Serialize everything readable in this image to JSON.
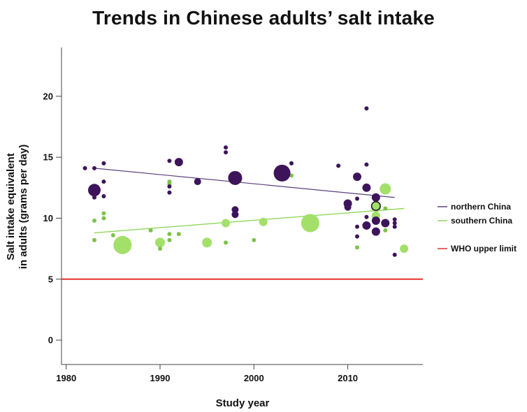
{
  "chart_data": {
    "type": "scatter",
    "title": "Trends in Chinese adults’ salt intake",
    "xlabel": "Study year",
    "ylabel_lines": [
      "Salt intake equivalent",
      "in adults (grams per day)"
    ],
    "xlim": [
      1979.5,
      2018
    ],
    "ylim": [
      -2,
      24
    ],
    "xticks": [
      "1980",
      "1990",
      "2000",
      "2010"
    ],
    "yticks": [
      "0",
      "5",
      "10",
      "15",
      "20"
    ],
    "legend_position": "right",
    "colors": {
      "northern": "#3d1459",
      "southern": "#a3e06a",
      "southern_dark": "#7cc24a",
      "who": "#e8302a",
      "axis": "#444444"
    },
    "series": [
      {
        "name": "northern China",
        "trend": [
          [
            1983,
            14.1
          ],
          [
            2015,
            11.7
          ]
        ],
        "points": [
          [
            1982,
            14.1,
            3
          ],
          [
            1983,
            14.1,
            3
          ],
          [
            1983,
            12.3,
            9
          ],
          [
            1983,
            11.7,
            3
          ],
          [
            1984,
            14.5,
            3
          ],
          [
            1984,
            13.0,
            3
          ],
          [
            1984,
            11.8,
            3
          ],
          [
            1991,
            14.7,
            3
          ],
          [
            1991,
            12.6,
            3
          ],
          [
            1991,
            12.1,
            3
          ],
          [
            1992,
            14.6,
            6
          ],
          [
            1994,
            13.0,
            5
          ],
          [
            1997,
            15.8,
            3
          ],
          [
            1997,
            15.4,
            3
          ],
          [
            1998,
            13.3,
            10
          ],
          [
            1998,
            10.7,
            5
          ],
          [
            1998,
            10.3,
            5
          ],
          [
            2003,
            13.7,
            12
          ],
          [
            2004,
            14.5,
            3
          ],
          [
            2009,
            14.3,
            3
          ],
          [
            2010,
            11.2,
            6
          ],
          [
            2010,
            10.9,
            5
          ],
          [
            2011,
            13.4,
            6
          ],
          [
            2011,
            11.6,
            3
          ],
          [
            2012,
            19.0,
            3
          ],
          [
            2012,
            14.4,
            3
          ],
          [
            2012,
            12.5,
            6
          ],
          [
            2012,
            10.1,
            3
          ],
          [
            2012,
            9.4,
            6
          ],
          [
            2013,
            11.7,
            6
          ],
          [
            2013,
            11.0,
            7
          ],
          [
            2013,
            9.8,
            6
          ],
          [
            2013,
            8.9,
            6
          ],
          [
            2011,
            9.3,
            3
          ],
          [
            2011,
            8.5,
            3
          ],
          [
            2014,
            9.6,
            6
          ],
          [
            2015,
            9.9,
            3
          ],
          [
            2015,
            9.6,
            3
          ],
          [
            2015,
            9.3,
            3
          ],
          [
            2015,
            7.0,
            3
          ]
        ]
      },
      {
        "name": "southern China",
        "trend": [
          [
            1983,
            8.8
          ],
          [
            2016,
            10.8
          ]
        ],
        "points": [
          [
            1983,
            9.8,
            3
          ],
          [
            1983,
            8.2,
            3
          ],
          [
            1984,
            10.4,
            3
          ],
          [
            1984,
            10.0,
            3
          ],
          [
            1985,
            8.6,
            3
          ],
          [
            1986,
            7.8,
            13
          ],
          [
            1989,
            9.0,
            3
          ],
          [
            1990,
            8.0,
            7
          ],
          [
            1990,
            7.5,
            3
          ],
          [
            1991,
            13.0,
            3
          ],
          [
            1991,
            12.8,
            3
          ],
          [
            1991,
            8.7,
            3
          ],
          [
            1991,
            8.2,
            3
          ],
          [
            1992,
            8.7,
            3
          ],
          [
            1995,
            8.0,
            7
          ],
          [
            1997,
            9.6,
            6
          ],
          [
            1997,
            8.0,
            3
          ],
          [
            2000,
            8.2,
            3
          ],
          [
            2001,
            9.7,
            6
          ],
          [
            2004,
            14.5,
            3
          ],
          [
            2004,
            13.5,
            3
          ],
          [
            2006,
            9.6,
            13
          ],
          [
            2009,
            14.3,
            3
          ],
          [
            2011,
            7.6,
            3
          ],
          [
            2013,
            10.9,
            7
          ],
          [
            2013,
            10.2,
            6
          ],
          [
            2014,
            12.4,
            8
          ],
          [
            2014,
            10.8,
            3
          ],
          [
            2014,
            9.0,
            3
          ],
          [
            2016,
            7.5,
            6
          ]
        ]
      },
      {
        "name": "WHO upper limit",
        "value": 5
      }
    ]
  }
}
